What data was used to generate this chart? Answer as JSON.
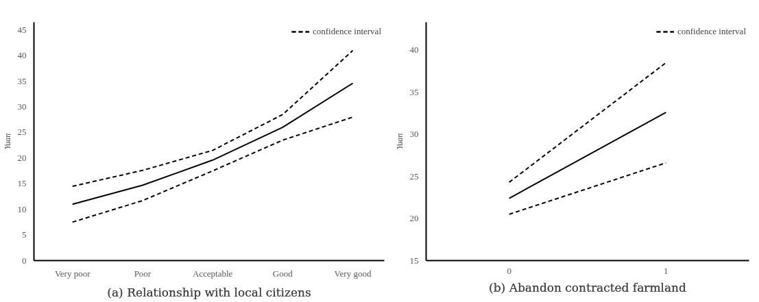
{
  "chart_data": [
    {
      "type": "line",
      "title": "(a) Relationship with local citizens",
      "ylabel": "Yuan",
      "categories": [
        "Very poor",
        "Poor",
        "Acceptable",
        "Good",
        "Very good"
      ],
      "series": [
        {
          "color": "#000000",
          "line_style": "solid",
          "values": [
            11,
            14.7,
            19.6,
            26,
            34.6
          ]
        },
        {
          "name": "confidence interval",
          "color": "#000000",
          "line_style": "dashed",
          "values": [
            14.5,
            17.6,
            21.5,
            28.5,
            41
          ]
        },
        {
          "name": "confidence interval",
          "color": "#000000",
          "line_style": "dashed",
          "values": [
            7.5,
            11.7,
            17.5,
            23.5,
            28
          ]
        }
      ],
      "ylim": [
        0,
        46.5
      ],
      "yticks": [
        0,
        5,
        10,
        15,
        20,
        25,
        30,
        35,
        40,
        45
      ],
      "grid": false,
      "legend": "top right",
      "marker": "none"
    },
    {
      "type": "line",
      "title": "(b) Abandon contracted farmland",
      "ylabel": "Yuan",
      "categories": [
        "0",
        "1"
      ],
      "series": [
        {
          "color": "#000000",
          "line_style": "solid",
          "values": [
            22.4,
            32.6
          ]
        },
        {
          "name": "confidence interval",
          "color": "#000000",
          "line_style": "dashed",
          "values": [
            24.3,
            38.5
          ]
        },
        {
          "name": "confidence interval",
          "color": "#000000",
          "line_style": "dashed",
          "values": [
            20.5,
            26.6
          ]
        }
      ],
      "ylim": [
        15,
        43.3
      ],
      "yticks": [
        15,
        20,
        25,
        30,
        35,
        40
      ],
      "grid": false,
      "legend": "top right",
      "marker": "none"
    }
  ]
}
